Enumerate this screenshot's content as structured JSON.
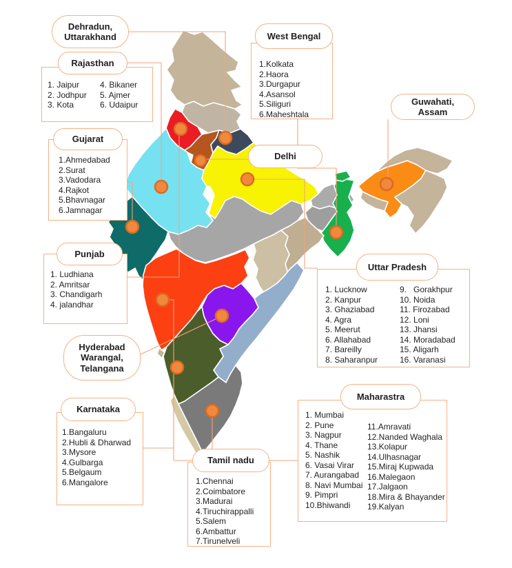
{
  "figure": {
    "type": "india-states-and-major-cities-infographic"
  },
  "map": {
    "background": "#FFFFFF",
    "box_border_color": "#F5B183",
    "connector_color": "#F2A47B",
    "text_color": "#1F1F1F",
    "marker": {
      "fill": "#F0883E",
      "stroke": "#DB6B1F"
    },
    "region_colors": {
      "jammu_kashmir": "#C3B49A",
      "himachal_pradesh": "#C0B5A4",
      "punjab": "#EC1C24",
      "haryana": "#B4561D",
      "uttarakhand": "#3B4A5C",
      "rajasthan": "#76E1F1",
      "uttar_pradesh": "#F7F303",
      "gujarat": "#0F6B68",
      "madhya_pradesh": "#A6A6A6",
      "bihar": "#ABABAB",
      "jharkhand": "#9E9E9E",
      "west_bengal": "#17B04D",
      "sikkim": "#17B04D",
      "assam": "#FA8C16",
      "arunachal_pradesh": "#C3B49A",
      "northeast_states": "#C3B49A",
      "meghalaya": "#C3B49A",
      "chhattisgarh": "#CDBFA3",
      "odisha": "#BFAE92",
      "maharashtra": "#FC4012",
      "telangana": "#8A16EE",
      "andhra_pradesh": "#93AECB",
      "karnataka": "#4B5D2A",
      "goa": "#C3B49A",
      "kerala": "#D5C8A5",
      "tamil_nadu": "#7A7A7A"
    }
  },
  "callouts": {
    "dehradun": {
      "title": "Dehradun, Uttarakhand"
    },
    "rajasthan": {
      "title": "Rajasthan",
      "col1": [
        "1. Jaipur",
        "2. Jodhpur",
        "3. Kota"
      ],
      "col2": [
        "4. Bikaner",
        "5. Ajmer",
        "6. Udaipur"
      ]
    },
    "west_bengal": {
      "title": "West Bengal",
      "col1": [
        "1.Kolkata",
        "2.Haora",
        "3.Durgapur",
        "4.Asansol",
        "5.Siliguri",
        "6.Maheshtala"
      ]
    },
    "guwahati": {
      "title": "Guwahati, Assam"
    },
    "gujarat": {
      "title": "Gujarat",
      "col1": [
        "1.Ahmedabad",
        "2.Surat",
        "3.Vadodara",
        "4.Rajkot",
        "5.Bhavnagar",
        "6.Jamnagar"
      ]
    },
    "delhi": {
      "title": "Delhi"
    },
    "punjab": {
      "title": "Punjab",
      "col1": [
        "1. Ludhiana",
        "2. Amritsar",
        "3. Chandigarh",
        "4. jalandhar"
      ]
    },
    "uttar_pradesh": {
      "title": "Uttar Pradesh",
      "col1": [
        "1. Lucknow",
        "2. Kanpur",
        "3. Ghaziabad",
        "4. Agra",
        "5. Meerut",
        "6. Allahabad",
        "7. Bareilly",
        "8. Saharanpur"
      ],
      "col2": [
        "9.   Gorakhpur",
        "10. Noida",
        "11. Firozabad",
        "12. Loni",
        "13. Jhansi",
        "14. Moradabad",
        "15. Aligarh",
        "16. Varanasi"
      ]
    },
    "hyderabad": {
      "title": "Hyderabad Warangal, Telangana"
    },
    "karnataka": {
      "title": "Karnataka",
      "col1": [
        "1.Bangaluru",
        "2.Hubli & Dharwad",
        "3.Mysore",
        "4.Gulbarga",
        "5.Belgaum",
        "6.Mangalore"
      ]
    },
    "maharastra": {
      "title": "Maharastra",
      "col1": [
        "1. Mumbai",
        "2. Pune",
        "3. Nagpur",
        "4. Thane",
        "5. Nashik",
        "6. Vasai Virar",
        "7. Aurangabad",
        "8. Navi Mumbai",
        "9. Pimpri",
        "10.Bhiwandi"
      ],
      "col2": [
        "11.Amravati",
        "12.Nanded Waghala",
        "13.Kolapur",
        "14.Ulhasnagar",
        "15.Miraj Kupwada",
        "16.Malegaon",
        "17.Jalgaon",
        "18.Mira & Bhayander",
        "19.Kalyan"
      ]
    },
    "tamil_nadu": {
      "title": "Tamil nadu",
      "col1": [
        "1.Chennai",
        "2.Coimbatore",
        "3.Madurai",
        "4.Tiruchirappalli",
        "5.Salem",
        "6.Ambattur",
        "7.Tirunelveli"
      ]
    }
  }
}
